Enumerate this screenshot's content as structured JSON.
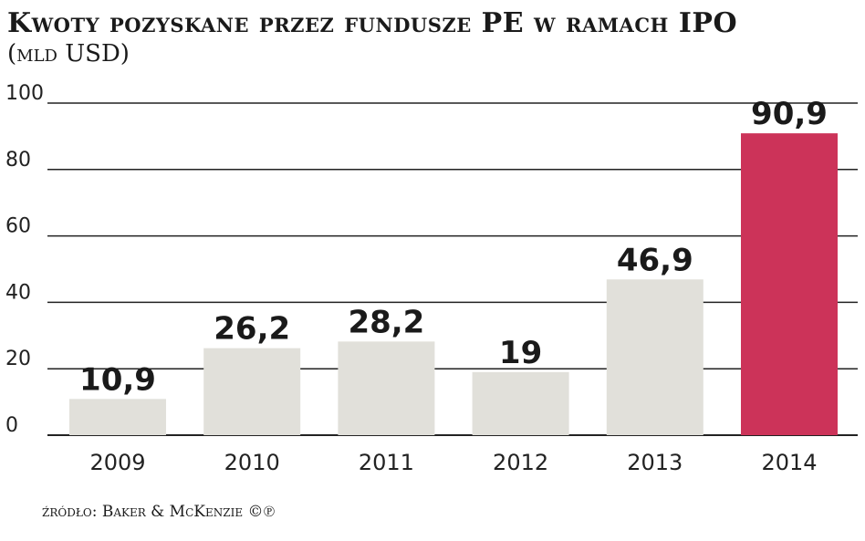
{
  "chart_data": {
    "type": "bar",
    "title": "Kwoty pozyskane przez fundusze PE w ramach IPO",
    "subtitle": "(mld USD)",
    "categories": [
      "2009",
      "2010",
      "2011",
      "2012",
      "2013",
      "2014"
    ],
    "values": [
      10.9,
      26.2,
      28.2,
      19,
      46.9,
      90.9
    ],
    "value_labels": [
      "10,9",
      "26,2",
      "28,2",
      "19",
      "46,9",
      "90,9"
    ],
    "ylim": [
      0,
      100
    ],
    "yticks": [
      0,
      20,
      40,
      60,
      80,
      100
    ],
    "grid": true,
    "colors": {
      "default": "#e1e0da",
      "highlight": "#cc3359",
      "highlight_index": 5,
      "grid": "#222222"
    },
    "source": "źródło: Baker & McKenzie ©℗"
  }
}
